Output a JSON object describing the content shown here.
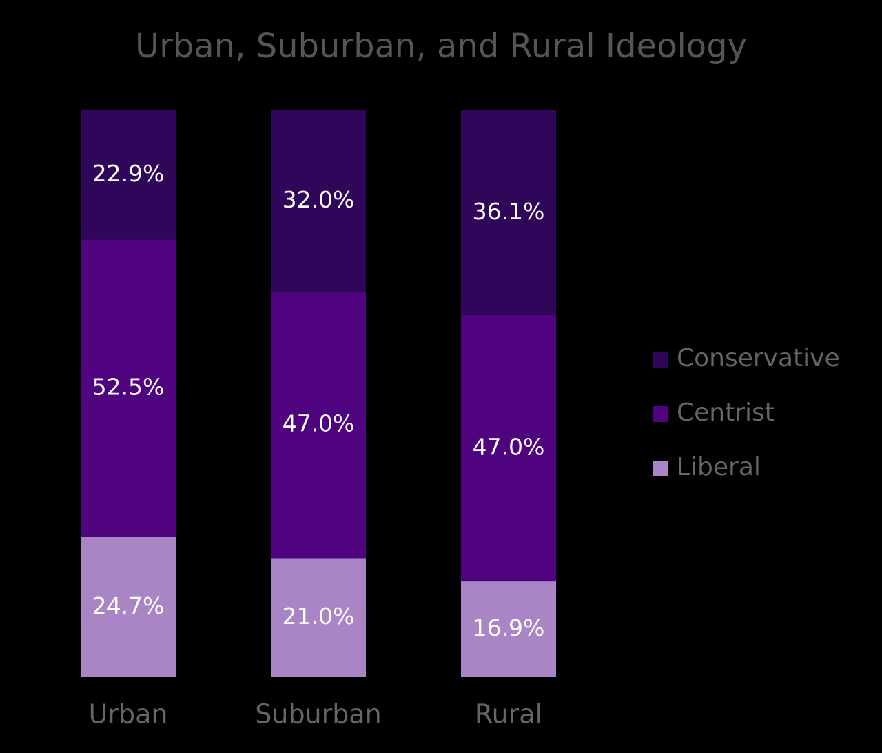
{
  "chart_data": {
    "type": "stacked_bar",
    "title": "Urban, Suburban, and Rural Ideology",
    "categories": [
      "Urban",
      "Suburban",
      "Rural"
    ],
    "series": [
      {
        "name": "Conservative",
        "color": "#30065a",
        "values": [
          22.9,
          32.0,
          36.1
        ],
        "value_labels": [
          "22.9%",
          "32.0%",
          "36.1%"
        ]
      },
      {
        "name": "Centrist",
        "color": "#50037f",
        "values": [
          52.5,
          47.0,
          47.0
        ],
        "value_labels": [
          "52.5%",
          "47.0%",
          "47.0%"
        ]
      },
      {
        "name": "Liberal",
        "color": "#a985c5",
        "values": [
          24.7,
          21.0,
          16.9
        ],
        "value_labels": [
          "24.7%",
          "21.0%",
          "16.9%"
        ]
      }
    ],
    "ylim": [
      0,
      100
    ],
    "legend": "right"
  }
}
